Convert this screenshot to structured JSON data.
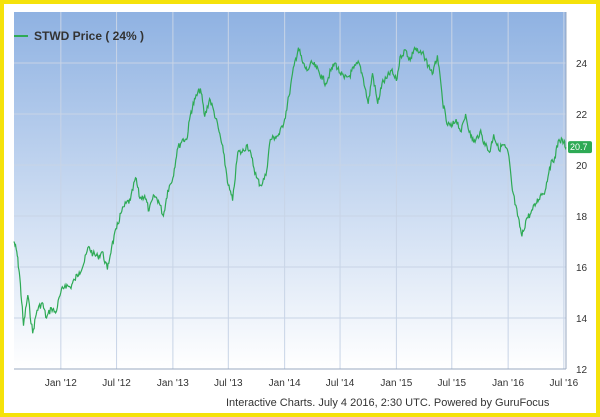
{
  "chart_data": {
    "type": "line",
    "title": "",
    "xlabel": "",
    "ylabel": "",
    "ylim": [
      12,
      26
    ],
    "xlim": [
      "2011-08-01",
      "2016-07-08"
    ],
    "grid": true,
    "legend_position": "top-left",
    "colors": {
      "line": "#2eaa55",
      "bg_top": "#8fb2e2",
      "bg_bottom": "#ffffff",
      "frame": "#f5e20a",
      "grid": "#c8d4e6"
    },
    "x_ticks": [
      {
        "label": "Jan '12",
        "date": "2012-01-01"
      },
      {
        "label": "Jul '12",
        "date": "2012-07-01"
      },
      {
        "label": "Jan '13",
        "date": "2013-01-01"
      },
      {
        "label": "Jul '13",
        "date": "2013-07-01"
      },
      {
        "label": "Jan '14",
        "date": "2014-01-01"
      },
      {
        "label": "Jul '14",
        "date": "2014-07-01"
      },
      {
        "label": "Jan '15",
        "date": "2015-01-01"
      },
      {
        "label": "Jul '15",
        "date": "2015-07-01"
      },
      {
        "label": "Jan '16",
        "date": "2016-01-01"
      },
      {
        "label": "Jul '16",
        "date": "2016-07-01"
      }
    ],
    "y_ticks": [
      12,
      14,
      16,
      18,
      20,
      22,
      24
    ],
    "series": [
      {
        "name": "STWD Price ( 24% )",
        "x": [
          "2011-08-01",
          "2011-08-10",
          "2011-08-20",
          "2011-09-01",
          "2011-09-15",
          "2011-10-01",
          "2011-10-15",
          "2011-11-01",
          "2011-11-15",
          "2011-12-01",
          "2011-12-15",
          "2012-01-01",
          "2012-01-15",
          "2012-02-01",
          "2012-02-15",
          "2012-03-01",
          "2012-03-15",
          "2012-04-01",
          "2012-04-15",
          "2012-05-01",
          "2012-05-15",
          "2012-06-01",
          "2012-06-15",
          "2012-07-01",
          "2012-07-15",
          "2012-08-01",
          "2012-08-15",
          "2012-09-01",
          "2012-09-15",
          "2012-10-01",
          "2012-10-15",
          "2012-11-01",
          "2012-11-15",
          "2012-12-01",
          "2012-12-15",
          "2013-01-01",
          "2013-01-15",
          "2013-02-01",
          "2013-02-15",
          "2013-03-01",
          "2013-03-15",
          "2013-04-01",
          "2013-04-15",
          "2013-05-01",
          "2013-05-15",
          "2013-06-01",
          "2013-06-15",
          "2013-07-01",
          "2013-07-15",
          "2013-08-01",
          "2013-08-15",
          "2013-09-01",
          "2013-09-15",
          "2013-10-01",
          "2013-10-15",
          "2013-11-01",
          "2013-11-15",
          "2013-12-01",
          "2013-12-15",
          "2014-01-01",
          "2014-01-15",
          "2014-02-01",
          "2014-02-15",
          "2014-03-01",
          "2014-03-15",
          "2014-04-01",
          "2014-04-15",
          "2014-05-01",
          "2014-05-15",
          "2014-06-01",
          "2014-06-15",
          "2014-07-01",
          "2014-07-15",
          "2014-08-01",
          "2014-08-15",
          "2014-09-01",
          "2014-09-15",
          "2014-10-01",
          "2014-10-15",
          "2014-11-01",
          "2014-11-15",
          "2014-12-01",
          "2014-12-15",
          "2015-01-01",
          "2015-01-15",
          "2015-02-01",
          "2015-02-15",
          "2015-03-01",
          "2015-03-15",
          "2015-04-01",
          "2015-04-15",
          "2015-05-01",
          "2015-05-15",
          "2015-06-01",
          "2015-06-15",
          "2015-07-01",
          "2015-07-15",
          "2015-08-01",
          "2015-08-15",
          "2015-09-01",
          "2015-09-15",
          "2015-10-01",
          "2015-10-15",
          "2015-11-01",
          "2015-11-15",
          "2015-12-01",
          "2015-12-15",
          "2016-01-01",
          "2016-01-15",
          "2016-02-01",
          "2016-02-15",
          "2016-03-01",
          "2016-03-15",
          "2016-04-01",
          "2016-04-15",
          "2016-05-01",
          "2016-05-15",
          "2016-06-01",
          "2016-06-15",
          "2016-07-01",
          "2016-07-08"
        ],
        "values": [
          17.0,
          16.6,
          15.6,
          13.7,
          14.9,
          13.4,
          14.3,
          14.6,
          14.0,
          14.4,
          14.2,
          15.0,
          15.3,
          15.2,
          15.5,
          15.8,
          16.1,
          16.8,
          16.5,
          16.4,
          16.6,
          15.9,
          16.8,
          17.5,
          18.1,
          18.5,
          18.6,
          19.5,
          18.7,
          18.8,
          18.2,
          18.8,
          18.6,
          18.0,
          19.0,
          19.5,
          20.6,
          21.0,
          21.0,
          22.1,
          22.6,
          23.0,
          21.9,
          22.6,
          22.1,
          21.3,
          20.5,
          19.2,
          18.6,
          20.5,
          20.5,
          20.8,
          20.3,
          19.5,
          19.2,
          19.6,
          21.0,
          21.1,
          21.2,
          21.8,
          22.7,
          23.9,
          24.6,
          24.0,
          23.7,
          24.0,
          23.8,
          23.5,
          23.2,
          23.7,
          24.0,
          23.6,
          23.4,
          23.5,
          23.8,
          24.0,
          23.4,
          22.4,
          23.6,
          22.4,
          23.2,
          23.4,
          23.7,
          23.3,
          24.3,
          24.5,
          24.1,
          24.6,
          24.4,
          24.3,
          23.9,
          23.6,
          24.3,
          22.5,
          21.6,
          21.5,
          21.8,
          21.3,
          22.0,
          21.1,
          20.9,
          21.3,
          20.9,
          20.5,
          21.2,
          20.6,
          20.8,
          20.5,
          19.0,
          18.0,
          17.2,
          17.9,
          18.1,
          18.5,
          18.8,
          19.0,
          19.9,
          20.3,
          21.0,
          20.9,
          20.7
        ],
        "last_value_label": "20.7"
      }
    ]
  },
  "footer": {
    "text": "Interactive Charts. July 4 2016, 2:30 UTC. Powered by GuruFocus"
  }
}
